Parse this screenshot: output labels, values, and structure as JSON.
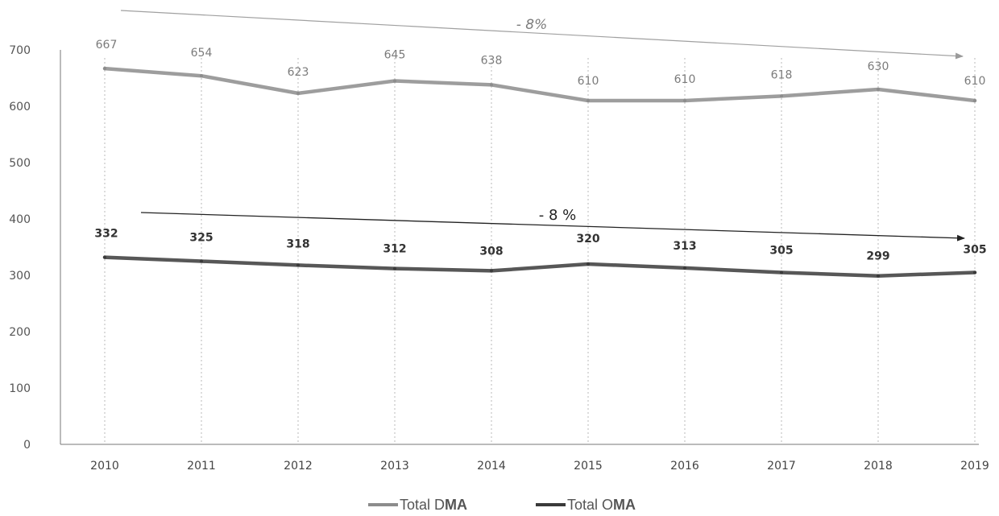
{
  "chart_data": {
    "type": "line",
    "categories": [
      "2010",
      "2011",
      "2012",
      "2013",
      "2014",
      "2015",
      "2016",
      "2017",
      "2018",
      "2019"
    ],
    "series": [
      {
        "name": "Total DMA",
        "legend_prefix": "Total D",
        "legend_strong": "MA",
        "color": "#8c8c8c",
        "values": [
          667,
          654,
          623,
          645,
          638,
          610,
          610,
          618,
          630,
          610
        ]
      },
      {
        "name": "Total OMA",
        "legend_prefix": "Total O",
        "legend_strong": "MA",
        "color": "#3a3a3a",
        "values": [
          332,
          325,
          318,
          312,
          308,
          320,
          313,
          305,
          299,
          305
        ]
      }
    ],
    "ylim": [
      0,
      700
    ],
    "yticks": [
      0,
      100,
      200,
      300,
      400,
      500,
      600,
      700
    ],
    "grid": "vertical dotted",
    "legend_position": "bottom",
    "annotations": [
      {
        "text": "- 8%",
        "series": "Total DMA",
        "kind": "trend-arrow"
      },
      {
        "text": "- 8 %",
        "series": "Total OMA",
        "kind": "trend-arrow"
      }
    ]
  }
}
